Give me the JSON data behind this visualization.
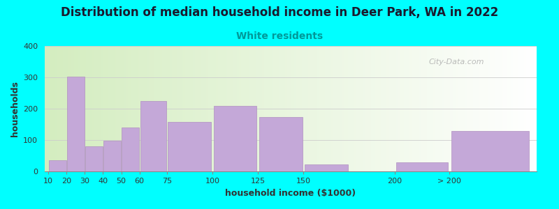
{
  "title": "Distribution of median household income in Deer Park, WA in 2022",
  "subtitle": "White residents",
  "xlabel": "household income ($1000)",
  "ylabel": "households",
  "background_color": "#00FFFF",
  "bar_color": "#C4A8D8",
  "bar_edge_color": "#B090C0",
  "categories": [
    "10",
    "20",
    "30",
    "40",
    "50",
    "60",
    "75",
    "100",
    "125",
    "150",
    "200",
    "> 200"
  ],
  "values": [
    35,
    303,
    80,
    97,
    140,
    225,
    157,
    208,
    173,
    22,
    28,
    128
  ],
  "bar_lefts": [
    10,
    20,
    30,
    40,
    50,
    60,
    75,
    100,
    125,
    150,
    200,
    230
  ],
  "bar_widths": [
    10,
    10,
    10,
    10,
    10,
    15,
    25,
    25,
    25,
    25,
    30,
    45
  ],
  "xtick_positions": [
    10,
    20,
    30,
    40,
    50,
    60,
    75,
    100,
    125,
    150,
    200,
    230
  ],
  "ylim": [
    0,
    400
  ],
  "yticks": [
    0,
    100,
    200,
    300,
    400
  ],
  "title_fontsize": 12,
  "subtitle_fontsize": 10,
  "subtitle_color": "#009999",
  "axis_label_fontsize": 9,
  "tick_fontsize": 8,
  "watermark": "City-Data.com"
}
